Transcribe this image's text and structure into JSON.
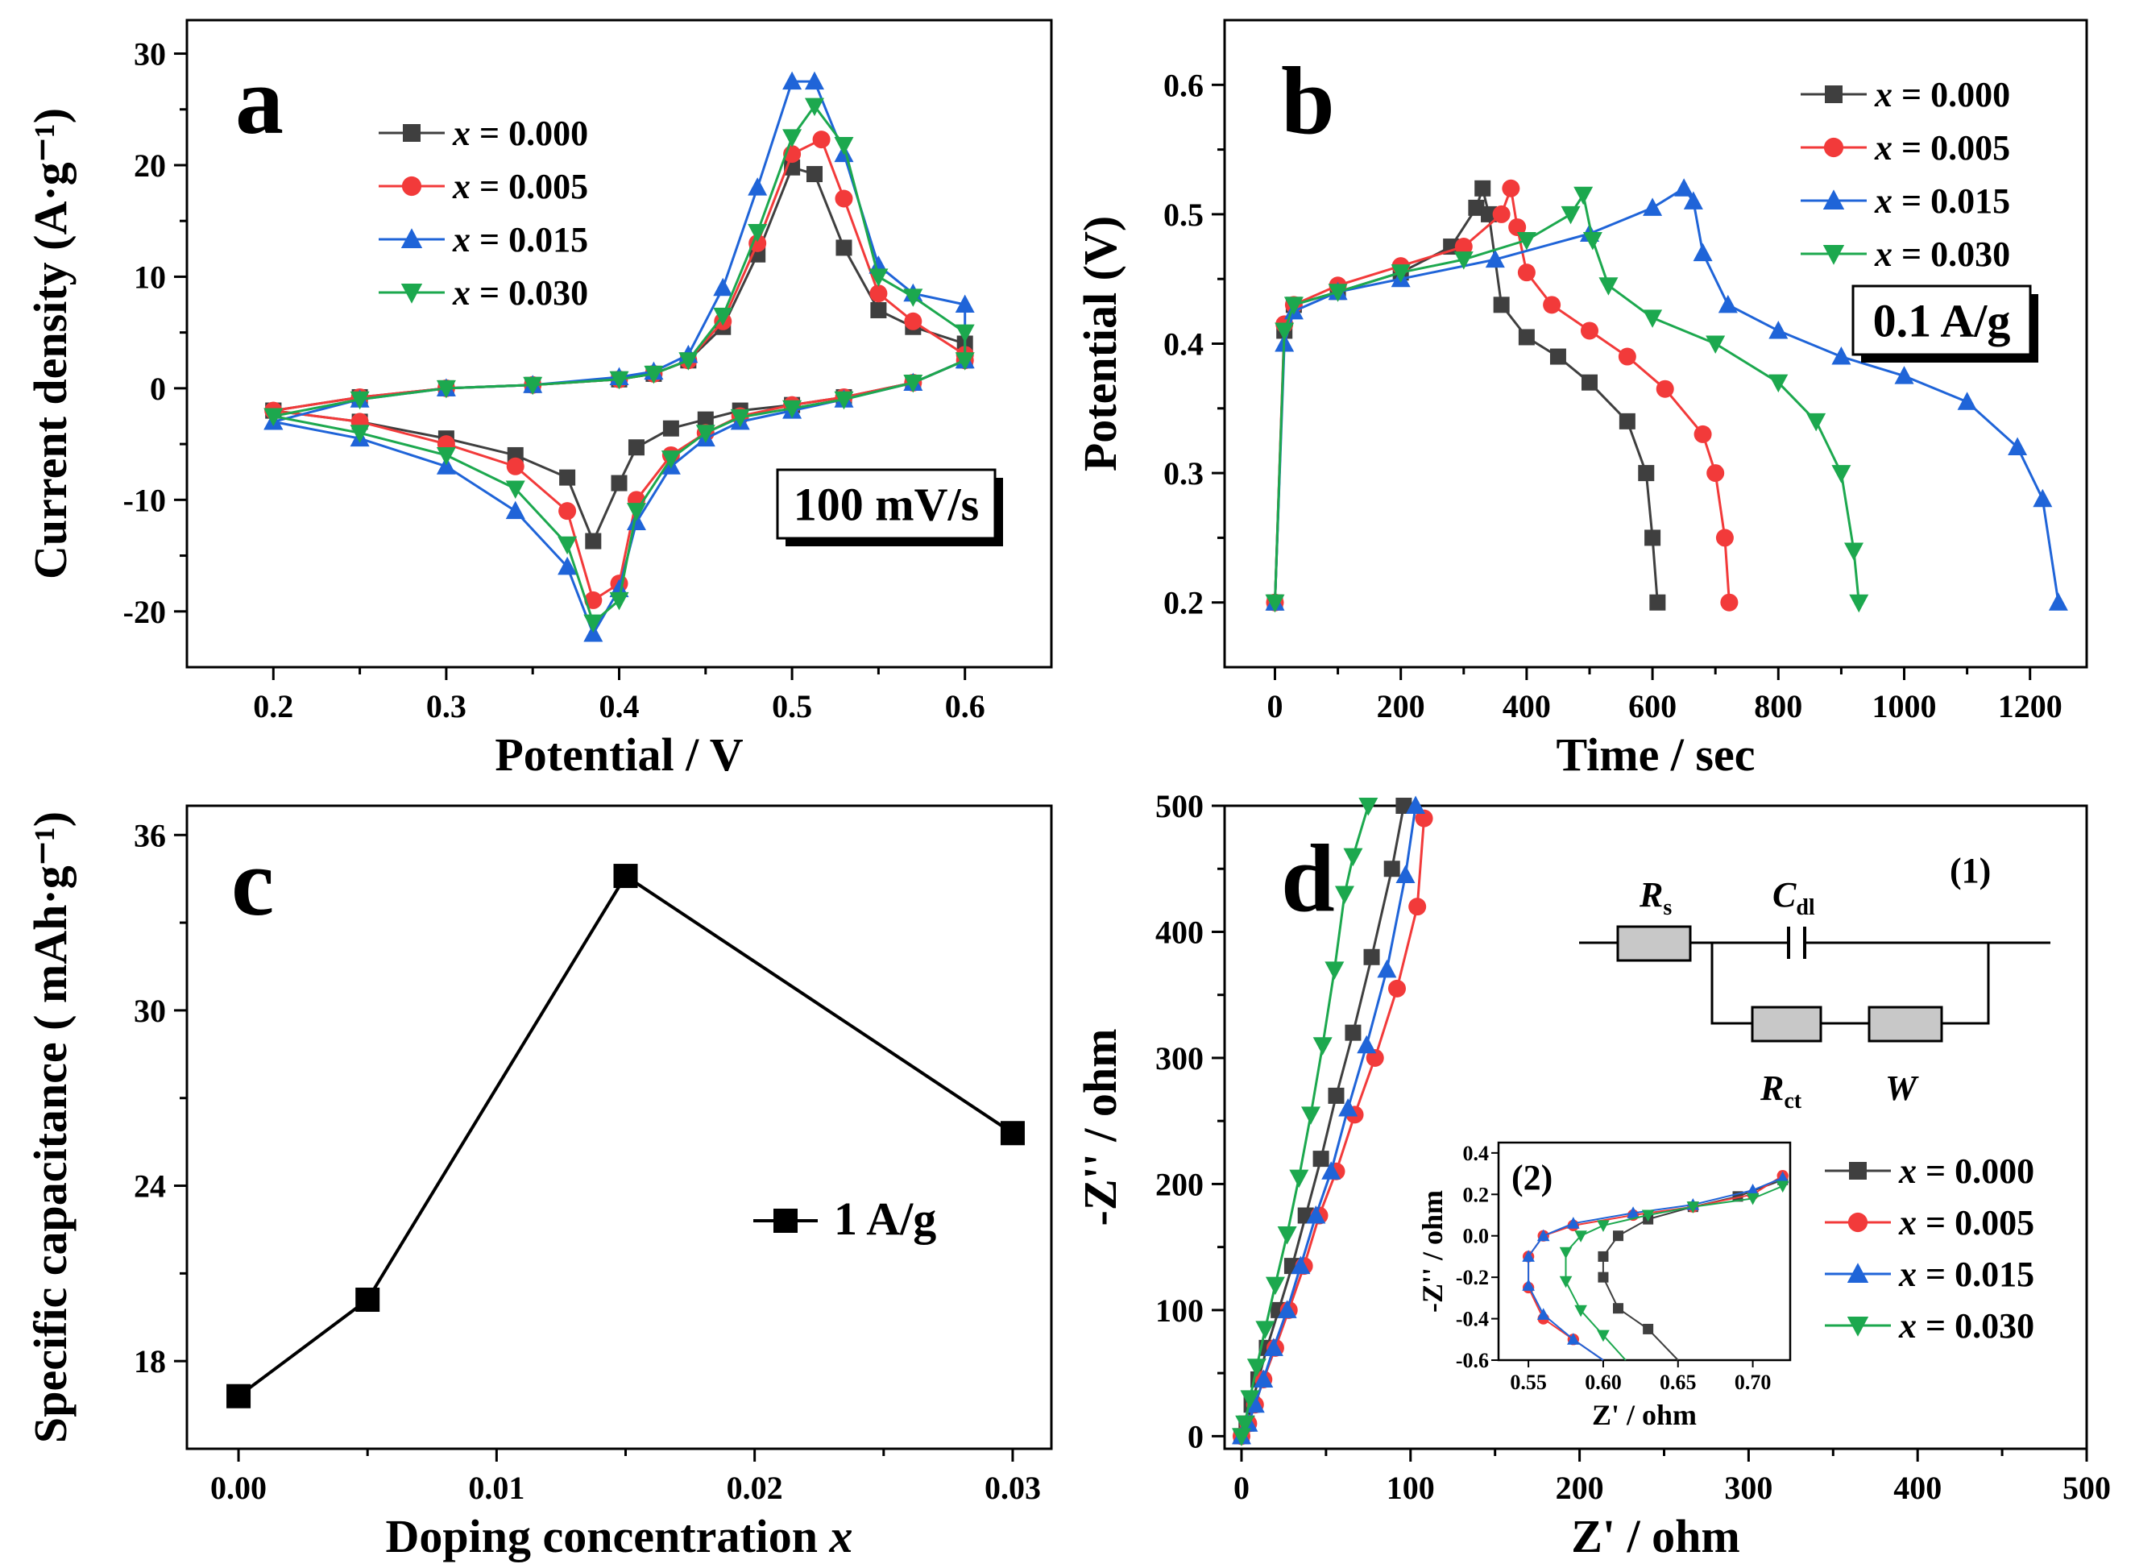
{
  "colors": {
    "s0": "#3f3f3f",
    "s1": "#f23a3a",
    "s2": "#1f64d8",
    "s3": "#1ca84e"
  },
  "chart_data": [
    {
      "panel": "a",
      "type": "line",
      "title": "",
      "xlabel": "Potential / V",
      "ylabel": "Current density (A·g⁻¹)",
      "xlim": [
        0.15,
        0.65
      ],
      "ylim": [
        -25,
        33
      ],
      "xticks": [
        0.2,
        0.3,
        0.4,
        0.5,
        0.6
      ],
      "xtick_labels": [
        "0.2",
        "0.3",
        "0.4",
        "0.5",
        "0.6"
      ],
      "yticks": [
        -20,
        -10,
        0,
        10,
        20,
        30
      ],
      "ytick_labels": [
        "-20",
        "-10",
        "0",
        "10",
        "20",
        "30"
      ],
      "annotation": "100 mV/s",
      "legend": [
        "x = 0.000",
        "x = 0.005",
        "x = 0.015",
        "x = 0.030"
      ],
      "series": [
        {
          "name": "x = 0.000",
          "markers": "square",
          "x": [
            0.2,
            0.25,
            0.3,
            0.35,
            0.4,
            0.42,
            0.44,
            0.46,
            0.48,
            0.5,
            0.513,
            0.53,
            0.55,
            0.57,
            0.6,
            0.6,
            0.57,
            0.53,
            0.5,
            0.47,
            0.45,
            0.43,
            0.41,
            0.4,
            0.385,
            0.37,
            0.34,
            0.3,
            0.25,
            0.2
          ],
          "y": [
            -2,
            -0.8,
            0,
            0.3,
            0.8,
            1.3,
            2.5,
            5.5,
            12,
            19.8,
            19.2,
            12.6,
            7,
            5.5,
            4,
            2.5,
            0.5,
            -0.8,
            -1.5,
            -2,
            -2.8,
            -3.6,
            -5.3,
            -8.5,
            -13.7,
            -8,
            -6,
            -4.5,
            -3,
            -2
          ]
        },
        {
          "name": "x = 0.005",
          "markers": "circle",
          "x": [
            0.2,
            0.25,
            0.3,
            0.35,
            0.4,
            0.42,
            0.44,
            0.46,
            0.48,
            0.5,
            0.517,
            0.53,
            0.55,
            0.57,
            0.6,
            0.6,
            0.57,
            0.53,
            0.5,
            0.47,
            0.45,
            0.43,
            0.41,
            0.4,
            0.385,
            0.37,
            0.34,
            0.3,
            0.25,
            0.2
          ],
          "y": [
            -2,
            -0.8,
            0,
            0.3,
            0.8,
            1.3,
            2.5,
            6,
            13,
            21,
            22.3,
            17,
            8.5,
            6,
            3,
            2.5,
            0.5,
            -0.8,
            -1.5,
            -2.5,
            -4,
            -6,
            -10,
            -17.5,
            -19,
            -11,
            -7,
            -5,
            -3,
            -2
          ]
        },
        {
          "name": "x = 0.015",
          "markers": "triangle-up",
          "x": [
            0.2,
            0.25,
            0.3,
            0.35,
            0.4,
            0.42,
            0.44,
            0.46,
            0.48,
            0.5,
            0.513,
            0.53,
            0.55,
            0.57,
            0.6,
            0.6,
            0.57,
            0.53,
            0.5,
            0.47,
            0.45,
            0.43,
            0.41,
            0.4,
            0.385,
            0.37,
            0.34,
            0.3,
            0.25,
            0.2
          ],
          "y": [
            -3,
            -1,
            0,
            0.3,
            1,
            1.5,
            3,
            9,
            18,
            27.5,
            27.5,
            21,
            11,
            8.5,
            7.5,
            2.5,
            0.5,
            -1,
            -2,
            -3,
            -4.5,
            -7,
            -12,
            -18,
            -22,
            -16,
            -11,
            -7,
            -4.5,
            -3
          ]
        },
        {
          "name": "x = 0.030",
          "markers": "triangle-down",
          "x": [
            0.2,
            0.25,
            0.3,
            0.35,
            0.4,
            0.42,
            0.44,
            0.46,
            0.48,
            0.5,
            0.513,
            0.53,
            0.55,
            0.57,
            0.6,
            0.6,
            0.57,
            0.53,
            0.5,
            0.47,
            0.45,
            0.43,
            0.41,
            0.4,
            0.385,
            0.37,
            0.34,
            0.3,
            0.25,
            0.2
          ],
          "y": [
            -2.5,
            -1,
            0,
            0.3,
            0.8,
            1.3,
            2.5,
            6.5,
            14,
            22.5,
            25.3,
            21.8,
            10,
            8.2,
            5,
            2.5,
            0.5,
            -1,
            -1.8,
            -2.6,
            -4,
            -6.3,
            -11,
            -19,
            -21,
            -14,
            -9,
            -6,
            -4,
            -2.5
          ]
        }
      ]
    },
    {
      "panel": "b",
      "type": "line",
      "title": "",
      "xlabel": "Time / sec",
      "ylabel": "Potential (V)",
      "xlim": [
        -80,
        1290
      ],
      "ylim": [
        0.15,
        0.65
      ],
      "xticks": [
        0,
        200,
        400,
        600,
        800,
        1000,
        1200
      ],
      "xtick_labels": [
        "0",
        "200",
        "400",
        "600",
        "800",
        "1000",
        "1200"
      ],
      "yticks": [
        0.2,
        0.3,
        0.4,
        0.5,
        0.6
      ],
      "ytick_labels": [
        "0.2",
        "0.3",
        "0.4",
        "0.5",
        "0.6"
      ],
      "annotation": "0.1 A/g",
      "legend": [
        "x = 0.000",
        "x = 0.005",
        "x = 0.015",
        "x = 0.030"
      ],
      "series": [
        {
          "name": "x = 0.000",
          "markers": "square",
          "x": [
            0,
            15,
            30,
            100,
            200,
            280,
            320,
            330,
            340,
            360,
            400,
            450,
            500,
            560,
            590,
            600,
            608
          ],
          "y": [
            0.2,
            0.41,
            0.43,
            0.44,
            0.455,
            0.475,
            0.505,
            0.52,
            0.5,
            0.43,
            0.405,
            0.39,
            0.37,
            0.34,
            0.3,
            0.25,
            0.2
          ]
        },
        {
          "name": "x = 0.005",
          "markers": "circle",
          "x": [
            0,
            15,
            30,
            100,
            200,
            300,
            360,
            375,
            385,
            400,
            440,
            500,
            560,
            620,
            680,
            700,
            715,
            722
          ],
          "y": [
            0.2,
            0.415,
            0.43,
            0.445,
            0.46,
            0.475,
            0.5,
            0.52,
            0.49,
            0.455,
            0.43,
            0.41,
            0.39,
            0.365,
            0.33,
            0.3,
            0.25,
            0.2
          ]
        },
        {
          "name": "x = 0.015",
          "markers": "triangle-up",
          "x": [
            0,
            15,
            30,
            100,
            200,
            350,
            500,
            600,
            650,
            665,
            680,
            720,
            800,
            900,
            1000,
            1100,
            1180,
            1220,
            1245
          ],
          "y": [
            0.2,
            0.4,
            0.425,
            0.44,
            0.45,
            0.465,
            0.485,
            0.505,
            0.52,
            0.51,
            0.47,
            0.43,
            0.41,
            0.39,
            0.375,
            0.355,
            0.32,
            0.28,
            0.2
          ]
        },
        {
          "name": "x = 0.030",
          "markers": "triangle-down",
          "x": [
            0,
            15,
            30,
            100,
            200,
            300,
            400,
            470,
            490,
            505,
            530,
            600,
            700,
            800,
            860,
            900,
            920,
            928
          ],
          "y": [
            0.2,
            0.41,
            0.43,
            0.44,
            0.455,
            0.465,
            0.48,
            0.5,
            0.515,
            0.48,
            0.445,
            0.42,
            0.4,
            0.37,
            0.34,
            0.3,
            0.24,
            0.2
          ]
        }
      ]
    },
    {
      "panel": "c",
      "type": "line",
      "title": "",
      "xlabel": "Doping concentration x",
      "ylabel": "Specific capacitance ( mAh·g⁻¹)",
      "xlim": [
        -0.002,
        0.0315
      ],
      "ylim": [
        15,
        37
      ],
      "xticks": [
        0,
        0.01,
        0.02,
        0.03
      ],
      "xtick_labels": [
        "0.00",
        "0.01",
        "0.02",
        "0.03"
      ],
      "yticks": [
        18,
        24,
        30,
        36
      ],
      "ytick_labels": [
        "18",
        "24",
        "30",
        "36"
      ],
      "legend": [
        "1 A/g"
      ],
      "series": [
        {
          "name": "1 A/g",
          "markers": "square",
          "x": [
            0,
            0.005,
            0.015,
            0.03
          ],
          "y": [
            16.8,
            20.1,
            34.6,
            25.8
          ]
        }
      ]
    },
    {
      "panel": "d",
      "type": "scatter",
      "title": "",
      "xlabel": "Z' / ohm",
      "ylabel": "-Z'' / ohm",
      "xlim": [
        -10,
        500
      ],
      "ylim": [
        -10,
        500
      ],
      "xticks": [
        0,
        100,
        200,
        300,
        400,
        500
      ],
      "xtick_labels": [
        "0",
        "100",
        "200",
        "300",
        "400",
        "500"
      ],
      "yticks": [
        0,
        100,
        200,
        300,
        400,
        500
      ],
      "ytick_labels": [
        "0",
        "100",
        "200",
        "300",
        "400",
        "500"
      ],
      "legend": [
        "x = 0.000",
        "x = 0.005",
        "x = 0.015",
        "x = 0.030"
      ],
      "series": [
        {
          "name": "x = 0.000",
          "markers": "square",
          "x": [
            0,
            3,
            6,
            10,
            15,
            22,
            30,
            38,
            47,
            56,
            66,
            77,
            89,
            96
          ],
          "y": [
            0,
            10,
            25,
            45,
            70,
            100,
            135,
            175,
            220,
            270,
            320,
            380,
            450,
            500
          ]
        },
        {
          "name": "x = 0.005",
          "markers": "circle",
          "x": [
            0,
            4,
            8,
            13,
            20,
            28,
            37,
            46,
            56,
            67,
            79,
            92,
            104,
            108
          ],
          "y": [
            0,
            10,
            25,
            45,
            70,
            100,
            135,
            175,
            210,
            255,
            300,
            355,
            420,
            490
          ]
        },
        {
          "name": "x = 0.015",
          "markers": "triangle-up",
          "x": [
            0,
            4,
            8,
            13,
            19,
            27,
            35,
            44,
            53,
            63,
            74,
            86,
            97,
            103
          ],
          "y": [
            0,
            10,
            25,
            45,
            70,
            100,
            135,
            175,
            210,
            260,
            310,
            370,
            445,
            500
          ]
        },
        {
          "name": "x = 0.030",
          "markers": "triangle-down",
          "x": [
            0,
            2,
            5,
            9,
            14,
            20,
            27,
            34,
            41,
            48,
            55,
            61,
            66,
            75
          ],
          "y": [
            0,
            10,
            30,
            55,
            85,
            120,
            160,
            205,
            255,
            310,
            370,
            430,
            460,
            500
          ]
        }
      ],
      "circuit": {
        "label": "(1)",
        "rs_main": "R",
        "rs_sub": "s",
        "cdl_main": "C",
        "cdl_sub": "dl",
        "rct_main": "R",
        "rct_sub": "ct",
        "w_label": "W"
      },
      "inset": {
        "label": "(2)",
        "xlabel": "Z' / ohm",
        "ylabel": "-Z'' / ohm",
        "xlim": [
          0.53,
          0.725
        ],
        "ylim": [
          -0.6,
          0.45
        ],
        "xticks": [
          0.55,
          0.6,
          0.65,
          0.7
        ],
        "xtick_labels": [
          "0.55",
          "0.60",
          "0.65",
          "0.70"
        ],
        "yticks": [
          -0.6,
          -0.4,
          -0.2,
          0.0,
          0.2,
          0.4
        ],
        "ytick_labels": [
          "-0.6",
          "-0.4",
          "-0.2",
          "0.0",
          "0.2",
          "0.4"
        ],
        "series": [
          {
            "name": "x = 0.000",
            "x": [
              0.65,
              0.63,
              0.61,
              0.6,
              0.6,
              0.61,
              0.63,
              0.66,
              0.69,
              0.72
            ],
            "y": [
              -0.6,
              -0.45,
              -0.35,
              -0.2,
              -0.1,
              0.0,
              0.08,
              0.14,
              0.19,
              0.27
            ]
          },
          {
            "name": "x = 0.005",
            "x": [
              0.6,
              0.58,
              0.56,
              0.55,
              0.55,
              0.56,
              0.58,
              0.62,
              0.66,
              0.7,
              0.72
            ],
            "y": [
              -0.6,
              -0.5,
              -0.4,
              -0.25,
              -0.1,
              0.0,
              0.05,
              0.1,
              0.14,
              0.2,
              0.29
            ]
          },
          {
            "name": "x = 0.015",
            "x": [
              0.6,
              0.58,
              0.56,
              0.55,
              0.55,
              0.56,
              0.58,
              0.62,
              0.66,
              0.7,
              0.72
            ],
            "y": [
              -0.6,
              -0.5,
              -0.38,
              -0.24,
              -0.1,
              0.0,
              0.06,
              0.11,
              0.15,
              0.22,
              0.28
            ]
          },
          {
            "name": "x = 0.030",
            "x": [
              0.615,
              0.6,
              0.585,
              0.575,
              0.575,
              0.585,
              0.6,
              0.63,
              0.66,
              0.7,
              0.72
            ],
            "y": [
              -0.6,
              -0.48,
              -0.36,
              -0.22,
              -0.08,
              0.0,
              0.05,
              0.1,
              0.14,
              0.18,
              0.24
            ]
          }
        ]
      }
    }
  ]
}
